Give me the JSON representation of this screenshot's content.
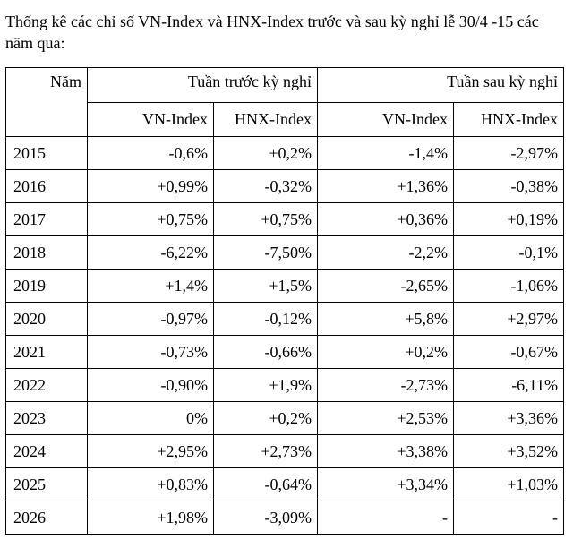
{
  "caption": "Thống kê các chỉ số VN-Index và HNX-Index trước và sau kỳ nghỉ lễ 30/4 -15 các\nnăm qua:",
  "table": {
    "year_header": "Năm",
    "group_before": "Tuần trước kỳ nghỉ",
    "group_after": "Tuần sau kỳ nghỉ",
    "sub_headers": [
      "VN-Index",
      "HNX-Index",
      "VN-Index",
      "HNX-Index"
    ],
    "rows": [
      {
        "year": "2015",
        "before_vn": "-0,6%",
        "before_hnx": "+0,2%",
        "after_vn": "-1,4%",
        "after_hnx": "-2,97%"
      },
      {
        "year": "2016",
        "before_vn": "+0,99%",
        "before_hnx": "-0,32%",
        "after_vn": "+1,36%",
        "after_hnx": "-0,38%"
      },
      {
        "year": "2017",
        "before_vn": "+0,75%",
        "before_hnx": "+0,75%",
        "after_vn": "+0,36%",
        "after_hnx": "+0,19%"
      },
      {
        "year": "2018",
        "before_vn": "-6,22%",
        "before_hnx": "-7,50%",
        "after_vn": "-2,2%",
        "after_hnx": "-0,1%"
      },
      {
        "year": "2019",
        "before_vn": "+1,4%",
        "before_hnx": "+1,5%",
        "after_vn": "-2,65%",
        "after_hnx": "-1,06%"
      },
      {
        "year": "2020",
        "before_vn": "-0,97%",
        "before_hnx": "-0,12%",
        "after_vn": "+5,8%",
        "after_hnx": "+2,97%"
      },
      {
        "year": "2021",
        "before_vn": "-0,73%",
        "before_hnx": "-0,66%",
        "after_vn": "+0,2%",
        "after_hnx": "-0,67%"
      },
      {
        "year": "2022",
        "before_vn": "-0,90%",
        "before_hnx": "+1,9%",
        "after_vn": "-2,73%",
        "after_hnx": "-6,11%"
      },
      {
        "year": "2023",
        "before_vn": "0%",
        "before_hnx": "+0,2%",
        "after_vn": "+2,53%",
        "after_hnx": "+3,36%"
      },
      {
        "year": "2024",
        "before_vn": "+2,95%",
        "before_hnx": "+2,73%",
        "after_vn": "+3,38%",
        "after_hnx": "+3,52%"
      },
      {
        "year": "2025",
        "before_vn": "+0,83%",
        "before_hnx": "-0,64%",
        "after_vn": "+3,34%",
        "after_hnx": "+1,03%"
      },
      {
        "year": "2026",
        "before_vn": "+1,98%",
        "before_hnx": "-3,09%",
        "after_vn": "-",
        "after_hnx": "-"
      }
    ]
  }
}
